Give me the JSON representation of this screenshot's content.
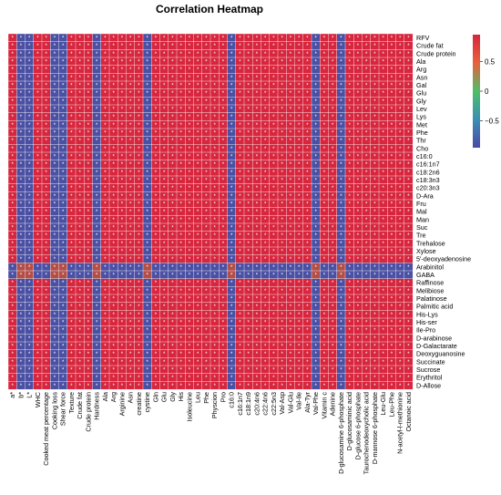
{
  "chart_data": {
    "type": "heatmap",
    "title": "Correlation Heatmap",
    "x_labels": [
      "a*",
      "b*",
      "L*",
      "WHC",
      "Cooked meat percentage",
      "Cooking loss",
      "Shear force",
      "Texture",
      "Crude fat",
      "Crude protein",
      "Hardness",
      "Ala",
      "Arg",
      "Arginine",
      "Asn",
      "creatine",
      "cystine",
      "Gln",
      "Glu",
      "Gly",
      "His",
      "Isoleucine",
      "Leu",
      "Phe",
      "Physcion",
      "Pro",
      "c16:0",
      "c16:1n7",
      "c18:1n9",
      "c20:4n6",
      "c22:4n6",
      "c22:5n3",
      "Val-Asp",
      "Val-Glu",
      "Val-Ile",
      "Ala-Tyr",
      "Val-Phe",
      "Vitamin c",
      "Adenine",
      "D-glucosamine 6-phosphate",
      "D-glucosaminic acid",
      "D-glucose 6-phosphate",
      "Taurochenodeoxycholic acid",
      "D-mannose 6-phosphate",
      "Leu-Glu",
      "Leu-Phe",
      "N-acetyl-l-methionine",
      "Octanoic acid"
    ],
    "y_labels": [
      "RFV",
      "Crude fat",
      "Crude protein",
      "Ala",
      "Arg",
      "Asn",
      "Gal",
      "Glu",
      "Gly",
      "Lev",
      "Lys",
      "Met",
      "Phe",
      "Thr",
      "Cho",
      "c16:0",
      "c16:1n7",
      "c18:2n6",
      "c18:3n3",
      "c20:3n3",
      "D-Ara",
      "Fru",
      "Mal",
      "Man",
      "Suc",
      "Tre",
      "Trehalose",
      "Xylose",
      "5'-deoxyadenosine",
      "Arabinitol",
      "GABA",
      "Raffinose",
      "Melibiose",
      "Palatinose",
      "Palmitic acid",
      "His-Lys",
      "His-ser",
      "Ile-Pro",
      "D-arabinose",
      "D-Galactarate",
      "Deoxyguanosine",
      "Succinate",
      "Sucrose",
      "Erythritol",
      "D-Allose"
    ],
    "negative_columns": [
      1,
      2,
      5,
      6,
      10,
      16,
      26,
      36,
      39
    ],
    "negative_rows": [
      29,
      30
    ],
    "cross_value": 0.7,
    "positive_value": 0.95,
    "negative_value": -0.9,
    "cell_annotation": "*",
    "colorbar": {
      "range": [
        -0.95,
        0.95
      ],
      "ticks": [
        0.5,
        0,
        -0.5
      ],
      "tick_labels": [
        "0.5",
        "0",
        "−0.5"
      ]
    },
    "colors": {
      "high": "#d7263d",
      "mid": "#4fbf68",
      "low": "#4a4aa6"
    }
  }
}
